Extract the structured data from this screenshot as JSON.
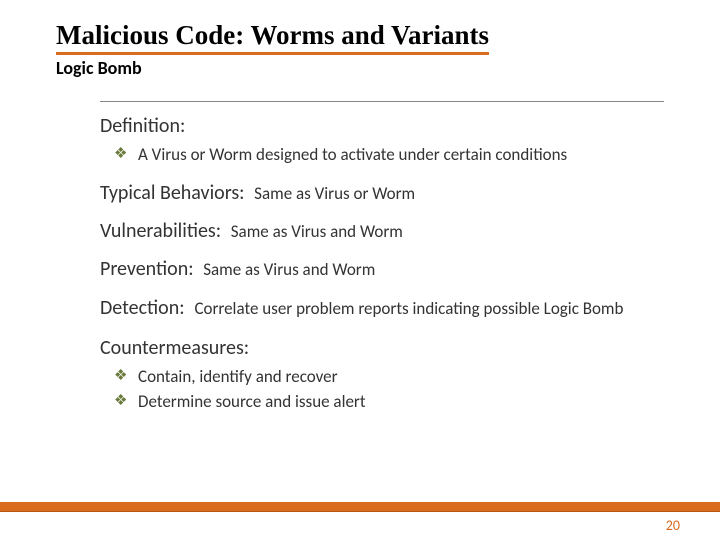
{
  "colors": {
    "accent": "#d96c1f",
    "bullet": "#6a7a3a",
    "text": "#333333",
    "background": "#ffffff"
  },
  "title": "Malicious Code: Worms and Variants",
  "subtitle": "Logic Bomb",
  "sections": {
    "definition": {
      "label": "Definition:",
      "bullets": [
        "A Virus or Worm designed to activate under certain conditions"
      ]
    },
    "typical_behaviors": {
      "label": "Typical Behaviors:",
      "inline": "Same as Virus or Worm"
    },
    "vulnerabilities": {
      "label": "Vulnerabilities:",
      "inline": "Same as Virus and Worm"
    },
    "prevention": {
      "label": "Prevention:",
      "inline": "Same as Virus and Worm"
    },
    "detection": {
      "label": "Detection:",
      "inline": "Correlate user problem reports indicating possible Logic Bomb"
    },
    "countermeasures": {
      "label": "Countermeasures:",
      "bullets": [
        "Contain, identify and recover",
        "Determine source and issue alert"
      ]
    }
  },
  "page_number": "20"
}
